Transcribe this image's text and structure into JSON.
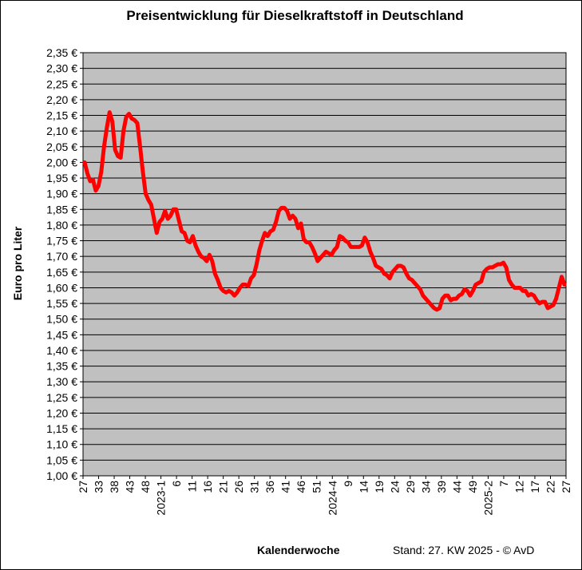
{
  "chart_data": {
    "type": "line",
    "title": "Preisentwicklung für Dieselkraftstoff in Deutschland",
    "xlabel": "Kalenderwoche",
    "ylabel": "Euro pro Liter",
    "footer": "Stand: 27. KW 2025 - © AvD",
    "ylim": [
      1.0,
      2.35
    ],
    "ystep": 0.05,
    "y_tick_labels": [
      "1,00 €",
      "1,05 €",
      "1,10 €",
      "1,15 €",
      "1,20 €",
      "1,25 €",
      "1,30 €",
      "1,35 €",
      "1,40 €",
      "1,45 €",
      "1,50 €",
      "1,55 €",
      "1,60 €",
      "1,65 €",
      "1,70 €",
      "1,75 €",
      "1,80 €",
      "1,85 €",
      "1,90 €",
      "1,95 €",
      "2,00 €",
      "2,05 €",
      "2,10 €",
      "2,15 €",
      "2,20 €",
      "2,25 €",
      "2,30 €",
      "2,35 €"
    ],
    "x_tick_labels": [
      "27",
      "33",
      "38",
      "43",
      "48",
      "2023-1",
      "6",
      "11",
      "16",
      "21",
      "26",
      "31",
      "36",
      "41",
      "46",
      "51",
      "2024-4",
      "9",
      "14",
      "19",
      "24",
      "29",
      "34",
      "39",
      "44",
      "49",
      "2025-2",
      "7",
      "12",
      "17",
      "22",
      "27"
    ],
    "grid": true,
    "series": [
      {
        "color": "#ff0000",
        "values": [
          2.0,
          1.965,
          1.94,
          1.945,
          1.91,
          1.925,
          1.97,
          2.05,
          2.11,
          2.16,
          2.13,
          2.04,
          2.02,
          2.015,
          2.1,
          2.145,
          2.155,
          2.14,
          2.135,
          2.125,
          2.05,
          1.97,
          1.9,
          1.88,
          1.865,
          1.82,
          1.775,
          1.81,
          1.82,
          1.845,
          1.82,
          1.83,
          1.85,
          1.85,
          1.815,
          1.78,
          1.775,
          1.75,
          1.745,
          1.765,
          1.735,
          1.715,
          1.7,
          1.695,
          1.685,
          1.705,
          1.685,
          1.645,
          1.625,
          1.6,
          1.59,
          1.585,
          1.59,
          1.585,
          1.575,
          1.585,
          1.6,
          1.61,
          1.61,
          1.605,
          1.63,
          1.64,
          1.675,
          1.72,
          1.75,
          1.775,
          1.765,
          1.78,
          1.785,
          1.81,
          1.845,
          1.855,
          1.855,
          1.845,
          1.82,
          1.83,
          1.82,
          1.79,
          1.805,
          1.755,
          1.745,
          1.745,
          1.73,
          1.71,
          1.685,
          1.695,
          1.705,
          1.715,
          1.71,
          1.705,
          1.72,
          1.73,
          1.765,
          1.76,
          1.75,
          1.745,
          1.73,
          1.73,
          1.73,
          1.73,
          1.735,
          1.76,
          1.745,
          1.715,
          1.695,
          1.67,
          1.665,
          1.66,
          1.645,
          1.64,
          1.63,
          1.65,
          1.66,
          1.67,
          1.67,
          1.665,
          1.645,
          1.63,
          1.625,
          1.615,
          1.605,
          1.595,
          1.575,
          1.565,
          1.555,
          1.545,
          1.535,
          1.53,
          1.535,
          1.565,
          1.575,
          1.575,
          1.56,
          1.565,
          1.565,
          1.575,
          1.58,
          1.595,
          1.59,
          1.575,
          1.59,
          1.61,
          1.615,
          1.62,
          1.65,
          1.66,
          1.665,
          1.665,
          1.67,
          1.675,
          1.675,
          1.68,
          1.665,
          1.625,
          1.61,
          1.6,
          1.6,
          1.6,
          1.59,
          1.59,
          1.575,
          1.58,
          1.575,
          1.56,
          1.55,
          1.555,
          1.555,
          1.535,
          1.54,
          1.545,
          1.565,
          1.6,
          1.635,
          1.61
        ]
      }
    ]
  }
}
